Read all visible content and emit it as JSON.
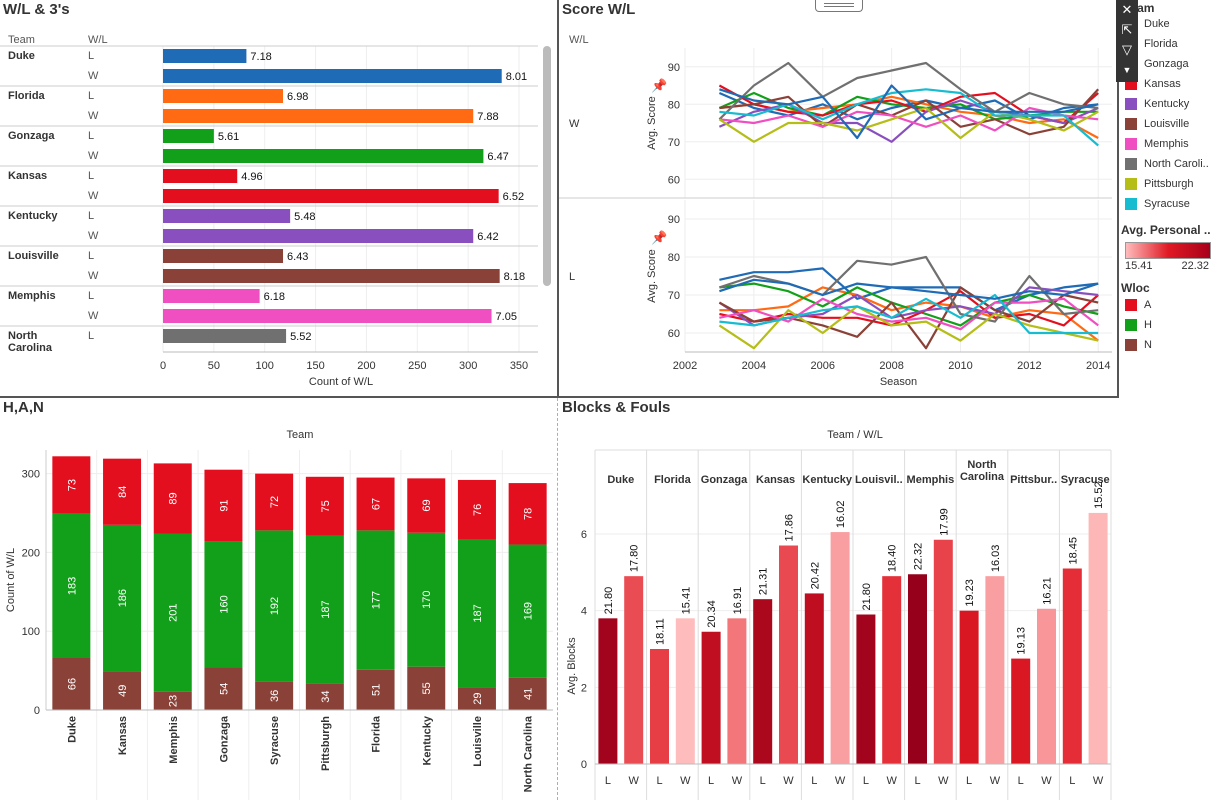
{
  "colors": {
    "Duke": "#1f6bb5",
    "Florida": "#ff6a13",
    "Gonzaga": "#12a01a",
    "Kansas": "#e30f1f",
    "Kentucky": "#8a4fbf",
    "Louisville": "#8a4238",
    "Memphis": "#ef4fc0",
    "North Carolina": "#707070",
    "Pittsburgh": "#b5bd17",
    "Syracuse": "#17bcd0",
    "A": "#e30f1f",
    "H": "#12a01a",
    "N": "#8a4238"
  },
  "legend": {
    "team_title": "Team",
    "teams": [
      "Duke",
      "Florida",
      "Gonzaga",
      "Kansas",
      "Kentucky",
      "Louisville",
      "Memphis",
      "North Caroli..",
      "Pittsburgh",
      "Syracuse"
    ],
    "team_keys": [
      "Duke",
      "Florida",
      "Gonzaga",
      "Kansas",
      "Kentucky",
      "Louisville",
      "Memphis",
      "North Carolina",
      "Pittsburgh",
      "Syracuse"
    ],
    "personal_title": "Avg. Personal ..",
    "personal_min": "15.41",
    "personal_max": "22.32",
    "wloc_title": "Wloc",
    "wloc": [
      "A",
      "H",
      "N"
    ]
  },
  "chart_data": [
    {
      "id": "wl3",
      "title": "W/L & 3's",
      "type": "bar",
      "row_headers": [
        "Team",
        "W/L"
      ],
      "xlabel": "Count of W/L",
      "xlim": [
        0,
        350
      ],
      "xticks": [
        0,
        50,
        100,
        150,
        200,
        250,
        300,
        350
      ],
      "rows": [
        {
          "team": "Duke",
          "wl": "L",
          "count": 82,
          "label": "7.18"
        },
        {
          "team": "Duke",
          "wl": "W",
          "count": 333,
          "label": "8.01"
        },
        {
          "team": "Florida",
          "wl": "L",
          "count": 118,
          "label": "6.98"
        },
        {
          "team": "Florida",
          "wl": "W",
          "count": 305,
          "label": "7.88"
        },
        {
          "team": "Gonzaga",
          "wl": "L",
          "count": 50,
          "label": "5.61"
        },
        {
          "team": "Gonzaga",
          "wl": "W",
          "count": 315,
          "label": "6.47"
        },
        {
          "team": "Kansas",
          "wl": "L",
          "count": 73,
          "label": "4.96"
        },
        {
          "team": "Kansas",
          "wl": "W",
          "count": 330,
          "label": "6.52"
        },
        {
          "team": "Kentucky",
          "wl": "L",
          "count": 125,
          "label": "5.48"
        },
        {
          "team": "Kentucky",
          "wl": "W",
          "count": 305,
          "label": "6.42"
        },
        {
          "team": "Louisville",
          "wl": "L",
          "count": 118,
          "label": "6.43"
        },
        {
          "team": "Louisville",
          "wl": "W",
          "count": 331,
          "label": "8.18"
        },
        {
          "team": "Memphis",
          "wl": "L",
          "count": 95,
          "label": "6.18"
        },
        {
          "team": "Memphis",
          "wl": "W",
          "count": 323,
          "label": "7.05"
        },
        {
          "team": "North Carolina",
          "wl": "L",
          "count": 121,
          "label": "5.52"
        }
      ]
    },
    {
      "id": "score",
      "title": "Score W/L",
      "type": "line",
      "row_header": "W/L",
      "ylabel": "Avg. Score",
      "xlabel": "Season",
      "x": [
        2003,
        2004,
        2005,
        2006,
        2007,
        2008,
        2009,
        2010,
        2011,
        2012,
        2013,
        2014
      ],
      "xticks": [
        2002,
        2004,
        2006,
        2008,
        2010,
        2012,
        2014
      ],
      "panels": [
        {
          "label": "W",
          "ylim": [
            55,
            95
          ],
          "yticks": [
            60,
            70,
            80,
            90
          ],
          "series": [
            {
              "name": "Duke",
              "values": [
                83,
                79,
                77,
                80,
                76,
                79,
                81,
                79,
                81,
                76,
                79,
                80
              ]
            },
            {
              "name": "Florida",
              "values": [
                79,
                80,
                78,
                79,
                80,
                82,
                80,
                78,
                77,
                75,
                76,
                71
              ]
            },
            {
              "name": "Gonzaga",
              "values": [
                79,
                83,
                79,
                77,
                82,
                80,
                79,
                80,
                76,
                77,
                78,
                78
              ]
            },
            {
              "name": "Kansas",
              "values": [
                85,
                80,
                78,
                77,
                80,
                81,
                78,
                82,
                83,
                77,
                75,
                83
              ]
            },
            {
              "name": "Kentucky",
              "values": [
                74,
                78,
                80,
                75,
                75,
                70,
                78,
                81,
                78,
                77,
                75,
                79
              ]
            },
            {
              "name": "Louisville",
              "values": [
                79,
                80,
                82,
                74,
                80,
                77,
                81,
                74,
                76,
                72,
                74,
                84
              ]
            },
            {
              "name": "Memphis",
              "values": [
                76,
                75,
                77,
                74,
                78,
                77,
                74,
                77,
                73,
                79,
                77,
                76
              ]
            },
            {
              "name": "North Carolina",
              "values": [
                76,
                85,
                91,
                82,
                87,
                89,
                91,
                84,
                78,
                83,
                80,
                79
              ]
            },
            {
              "name": "Pittsburgh",
              "values": [
                76,
                70,
                75,
                75,
                73,
                76,
                79,
                71,
                78,
                76,
                73,
                78
              ]
            },
            {
              "name": "Syracuse",
              "values": [
                78,
                77,
                80,
                76,
                80,
                83,
                84,
                83,
                77,
                77,
                77,
                69
              ]
            },
            {
              "name": "Duke",
              "values": [
                84,
                81,
                80,
                82,
                71,
                85,
                76,
                79,
                78,
                78,
                78,
                80
              ]
            }
          ]
        },
        {
          "label": "L",
          "ylim": [
            55,
            95
          ],
          "yticks": [
            60,
            70,
            80,
            90
          ],
          "series": [
            {
              "name": "Duke",
              "values": [
                74,
                76,
                76,
                77,
                69,
                72,
                72,
                72,
                66,
                70,
                72,
                73
              ]
            },
            {
              "name": "Florida",
              "values": [
                66,
                66,
                67,
                72,
                70,
                66,
                68,
                67,
                64,
                66,
                65,
                58
              ]
            },
            {
              "name": "Gonzaga",
              "values": [
                72,
                73,
                71,
                67,
                72,
                68,
                65,
                62,
                68,
                70,
                67,
                65
              ]
            },
            {
              "name": "Kansas",
              "values": [
                65,
                63,
                65,
                64,
                64,
                62,
                66,
                71,
                64,
                65,
                62,
                70
              ]
            },
            {
              "name": "Kentucky",
              "values": [
                68,
                62,
                64,
                65,
                70,
                64,
                66,
                67,
                65,
                72,
                71,
                70
              ]
            },
            {
              "name": "Louisville",
              "values": [
                68,
                63,
                64,
                62,
                59,
                68,
                56,
                72,
                66,
                63,
                70,
                68
              ]
            },
            {
              "name": "Memphis",
              "values": [
                64,
                66,
                63,
                69,
                65,
                63,
                64,
                61,
                68,
                68,
                69,
                62
              ]
            },
            {
              "name": "North Carolina",
              "values": [
                72,
                75,
                73,
                70,
                79,
                78,
                80,
                65,
                63,
                75,
                65,
                66
              ]
            },
            {
              "name": "Pittsburgh",
              "values": [
                62,
                56,
                66,
                60,
                67,
                62,
                63,
                58,
                65,
                62,
                60,
                58
              ]
            },
            {
              "name": "Syracuse",
              "values": [
                63,
                62,
                64,
                66,
                67,
                64,
                69,
                64,
                70,
                60,
                60,
                60
              ]
            },
            {
              "name": "Duke",
              "values": [
                71,
                74,
                73,
                70,
                73,
                72,
                71,
                70,
                69,
                71,
                70,
                73
              ]
            }
          ]
        }
      ]
    },
    {
      "id": "han",
      "title": "H,A,N",
      "type": "bar",
      "header": "Team",
      "ylabel": "Count of W/L",
      "ylim": [
        0,
        330
      ],
      "yticks": [
        0,
        100,
        200,
        300
      ],
      "categories": [
        "Duke",
        "Kansas",
        "Memphis",
        "Gonzaga",
        "Syracuse",
        "Pittsburgh",
        "Florida",
        "Kentucky",
        "Louisville",
        "North Carolina"
      ],
      "series": [
        {
          "name": "N",
          "values": [
            66,
            49,
            23,
            54,
            36,
            34,
            51,
            55,
            29,
            41
          ]
        },
        {
          "name": "H",
          "values": [
            183,
            186,
            201,
            160,
            192,
            187,
            177,
            170,
            187,
            169
          ]
        },
        {
          "name": "A",
          "values": [
            73,
            84,
            89,
            91,
            72,
            75,
            67,
            69,
            76,
            78
          ]
        }
      ]
    },
    {
      "id": "bf",
      "title": "Blocks & Fouls",
      "type": "bar",
      "header": "Team  /  W/L",
      "ylabel": "Avg. Blocks",
      "ylim": [
        0,
        7.2
      ],
      "yticks": [
        0,
        2,
        4,
        6
      ],
      "teams": [
        "Duke",
        "Florida",
        "Gonzaga",
        "Kansas",
        "Kentucky",
        "Louisvil..",
        "Memphis",
        "North Carolina",
        "Pittsbur..",
        "Syracuse"
      ],
      "wl": [
        "L",
        "W"
      ],
      "values": [
        [
          3.8,
          4.9
        ],
        [
          3.0,
          3.8
        ],
        [
          3.45,
          3.8
        ],
        [
          4.3,
          5.7
        ],
        [
          4.45,
          6.05
        ],
        [
          3.9,
          4.9
        ],
        [
          4.95,
          5.85
        ],
        [
          4.0,
          4.9
        ],
        [
          2.75,
          4.05
        ],
        [
          5.1,
          6.55
        ]
      ],
      "fouls": [
        [
          "21.80",
          "17.80"
        ],
        [
          "18.11",
          "15.41"
        ],
        [
          "20.34",
          "16.91"
        ],
        [
          "21.31",
          "17.86"
        ],
        [
          "20.42",
          "16.02"
        ],
        [
          "21.80",
          "18.40"
        ],
        [
          "22.32",
          "17.99"
        ],
        [
          "19.23",
          "16.03"
        ],
        [
          "19.13",
          "16.21"
        ],
        [
          "18.45",
          "15.52"
        ]
      ]
    }
  ]
}
